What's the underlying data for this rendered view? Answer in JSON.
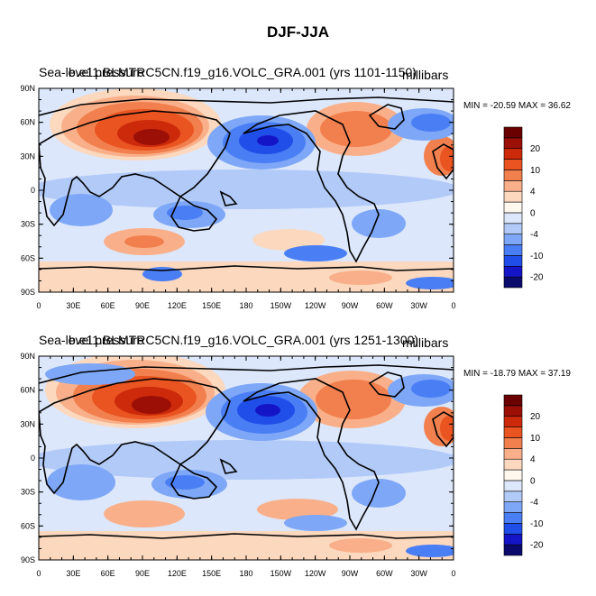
{
  "title": "DJF-JJA",
  "palette": [
    "#0b0b6e",
    "#1515c8",
    "#1f4fe8",
    "#4a7ef5",
    "#7ea7f7",
    "#b2caf8",
    "#dce7fb",
    "#fff8ef",
    "#fbd8be",
    "#f9b08a",
    "#f2804e",
    "#e95421",
    "#cc2a0a",
    "#9c0f06",
    "#6a0000"
  ],
  "colorbar": {
    "labels": [
      "20",
      "10",
      "4",
      "0",
      "-4",
      "-10",
      "-20"
    ]
  },
  "axes": {
    "lat_labels": [
      "90N",
      "60N",
      "30N",
      "0",
      "30S",
      "60S",
      "90S"
    ],
    "lon_labels": [
      "0",
      "30E",
      "60E",
      "90E",
      "120E",
      "150E",
      "180",
      "150W",
      "120W",
      "90W",
      "60W",
      "30W",
      "0"
    ]
  },
  "panels": [
    {
      "left_label": "Sea-level pressure",
      "center_label": "b.e11.BLMTRC5CN.f19_g16.VOLC_GRA.001 (yrs 1101-1150)",
      "units": "millibars",
      "minmax": "MIN = -20.59 MAX =  36.62"
    },
    {
      "left_label": "Sea-level pressure",
      "center_label": "b.e11.BLMTRC5CN.f19_g16.VOLC_GRA.001 (yrs 1251-1300)",
      "units": "millibars",
      "minmax": "MIN = -18.79 MAX =  37.19"
    }
  ]
}
